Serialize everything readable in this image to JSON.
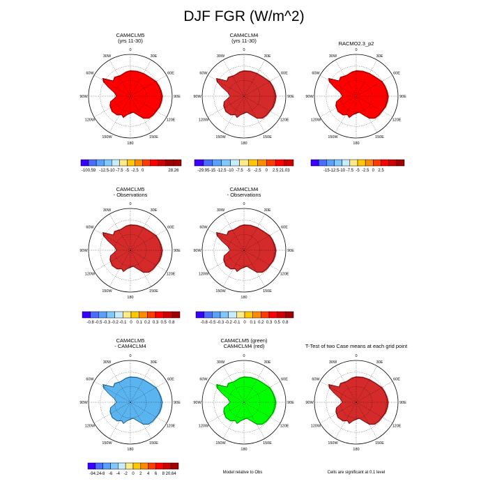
{
  "title": "DJF FGR (W/m^2)",
  "lon_labels": [
    "0",
    "30E",
    "60E",
    "90E",
    "120E",
    "150E",
    "180",
    "150W",
    "120W",
    "90W",
    "60W",
    "30W"
  ],
  "note_model_relative": "Model relative to Obs",
  "note_significance": "Cells are significant at 0.1 level",
  "colors": {
    "fill_red": "#ff0000",
    "fill_darkred": "#d42a2a",
    "fill_lightblue": "#5ab4f0",
    "fill_green": "#00ff00",
    "outline": "#000000"
  },
  "chart_data": [
    {
      "type": "heatmap",
      "id": "p1",
      "title_lines": [
        "CAM4CLM5",
        "(yrs 11-30)"
      ],
      "fill": "fill_red",
      "colorbar": {
        "colors": [
          "#3a00ff",
          "#4a6cff",
          "#5aa0ff",
          "#7ec8ff",
          "#c8ecff",
          "#ffeb8a",
          "#ffc800",
          "#ff8c00",
          "#ff3c00",
          "#ff0000",
          "#d00000",
          "#a00000"
        ],
        "labels": [
          "-100.59",
          "",
          "-12.5",
          "-10",
          "-7.5",
          "-5",
          "-2.5",
          "0",
          "",
          "",
          "",
          "28.26"
        ]
      }
    },
    {
      "type": "heatmap",
      "id": "p2",
      "title_lines": [
        "CAM4CLM4",
        "(yrs 11-30)"
      ],
      "fill": "fill_darkred",
      "colorbar": {
        "colors": [
          "#3a00ff",
          "#4a6cff",
          "#5aa0ff",
          "#7ec8ff",
          "#c8ecff",
          "#ffeb8a",
          "#ffc800",
          "#ff8c00",
          "#ff3c00",
          "#ff0000",
          "#d00000",
          "#a00000"
        ],
        "labels": [
          "-29.95",
          "-15",
          "-12.5",
          "-10",
          "-7.5",
          "-5",
          "-2.5",
          "0",
          "2.5",
          "21.03"
        ]
      }
    },
    {
      "type": "heatmap",
      "id": "p3",
      "title_lines": [
        "RACMO2.3_p2"
      ],
      "fill": "fill_red",
      "colorbar": {
        "colors": [
          "#3a00ff",
          "#4a6cff",
          "#5aa0ff",
          "#7ec8ff",
          "#c8ecff",
          "#ffeb8a",
          "#ffc800",
          "#ff8c00",
          "#ff3c00",
          "#ff0000",
          "#d00000",
          "#a00000"
        ],
        "labels": [
          "",
          "-15",
          "-12.5",
          "-10",
          "-7.5",
          "-5",
          "-2.5",
          "0",
          "2.5",
          "",
          ""
        ]
      }
    },
    {
      "type": "heatmap",
      "id": "p4",
      "title_lines": [
        "CAM4CLM5",
        "- Observations"
      ],
      "fill": "fill_darkred",
      "colorbar": {
        "colors": [
          "#3a00ff",
          "#4a6cff",
          "#5aa0ff",
          "#7ec8ff",
          "#c8ecff",
          "#ffeb8a",
          "#ffc800",
          "#ff8c00",
          "#ff3c00",
          "#ff0000",
          "#d00000",
          "#a00000"
        ],
        "labels": [
          "-0.8",
          "-0.5",
          "-0.3",
          "-0.2",
          "-0.1",
          "0",
          "0.1",
          "0.2",
          "0.3",
          "0.5",
          "0.8"
        ]
      }
    },
    {
      "type": "heatmap",
      "id": "p5",
      "title_lines": [
        "CAM4CLM4",
        "- Observations"
      ],
      "fill": "fill_darkred",
      "colorbar": {
        "colors": [
          "#3a00ff",
          "#4a6cff",
          "#5aa0ff",
          "#7ec8ff",
          "#c8ecff",
          "#ffeb8a",
          "#ffc800",
          "#ff8c00",
          "#ff3c00",
          "#ff0000",
          "#d00000",
          "#a00000"
        ],
        "labels": [
          "-0.8",
          "-0.5",
          "-0.3",
          "-0.2",
          "-0.1",
          "0",
          "0.1",
          "0.2",
          "0.3",
          "0.5",
          "0.8"
        ]
      }
    },
    {
      "type": "heatmap",
      "id": "p6",
      "title_lines": [
        "CAM4CLM5",
        "- CAM4CLM4"
      ],
      "fill": "fill_lightblue",
      "colorbar": {
        "colors": [
          "#3a00ff",
          "#4a6cff",
          "#5aa0ff",
          "#7ec8ff",
          "#c8ecff",
          "#ffeb8a",
          "#ffc800",
          "#ff8c00",
          "#ff3c00",
          "#ff0000",
          "#d00000",
          "#a00000"
        ],
        "labels": [
          "-94.24",
          "-8",
          "-6",
          "-4",
          "-2",
          "0",
          "2",
          "4",
          "6",
          "8",
          "20.64"
        ]
      }
    },
    {
      "type": "heatmap",
      "id": "p7",
      "title_lines": [
        "CAM4CLM5 (green)",
        "CAM4CLM4 (red)"
      ],
      "fill": "fill_green"
    },
    {
      "type": "heatmap",
      "id": "p8",
      "title_lines": [
        "T-Test of two Case means at each grid point"
      ],
      "fill": "fill_darkred"
    }
  ]
}
